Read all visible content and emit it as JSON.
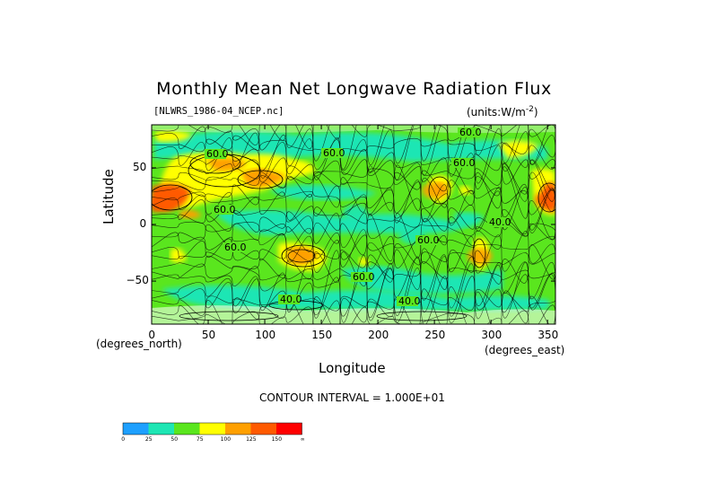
{
  "chart_data": {
    "type": "heatmap",
    "title": "Monthly Mean Net Longwave Radiation Flux",
    "subtitle_left": "[NLWRS_1986-04_NCEP.nc]",
    "units_prefix": "(units:W/m",
    "units_exp": "-2",
    "units_suffix": ")",
    "xlabel": "Longitude",
    "ylabel": "Latitude",
    "x_unit_label": "(degrees_north)",
    "y_unit_label": "(degrees_east)",
    "xlim": [
      0,
      357
    ],
    "ylim": [
      -88,
      88
    ],
    "x_ticks": [
      "0",
      "50",
      "100",
      "150",
      "200",
      "250",
      "300",
      "350"
    ],
    "y_ticks": [
      "50",
      "0",
      "−50"
    ],
    "contour_interval_text": "CONTOUR INTERVAL = 1.000E+01",
    "contour_labels": [
      "60.0",
      "60.0",
      "60.0",
      "60.0",
      "60.0",
      "60.0",
      "60.0",
      "60.0",
      "40.0",
      "40.0",
      "40.0"
    ],
    "colorbar": {
      "ticks": [
        "0",
        "25",
        "50",
        "75",
        "100",
        "125",
        "150",
        "∞"
      ],
      "colors": [
        "#1ea0ff",
        "#1ee6b4",
        "#5ae61e",
        "#ffff00",
        "#ffa000",
        "#ff5a00",
        "#ff0000"
      ]
    },
    "features": [
      {
        "lon": 10,
        "lat": 20,
        "value": 130
      },
      {
        "lon": 95,
        "lat": 42,
        "value": 120
      },
      {
        "lon": 130,
        "lat": -28,
        "value": 110
      },
      {
        "lon": 250,
        "lat": 30,
        "value": 100
      },
      {
        "lon": 290,
        "lat": -28,
        "value": 120
      },
      {
        "lon": 350,
        "lat": 22,
        "value": 130
      },
      {
        "lon": 180,
        "lat": 10,
        "value": 30
      },
      {
        "lon": 230,
        "lat": -10,
        "value": 30
      },
      {
        "lon": 200,
        "lat": -45,
        "value": 30
      }
    ]
  }
}
